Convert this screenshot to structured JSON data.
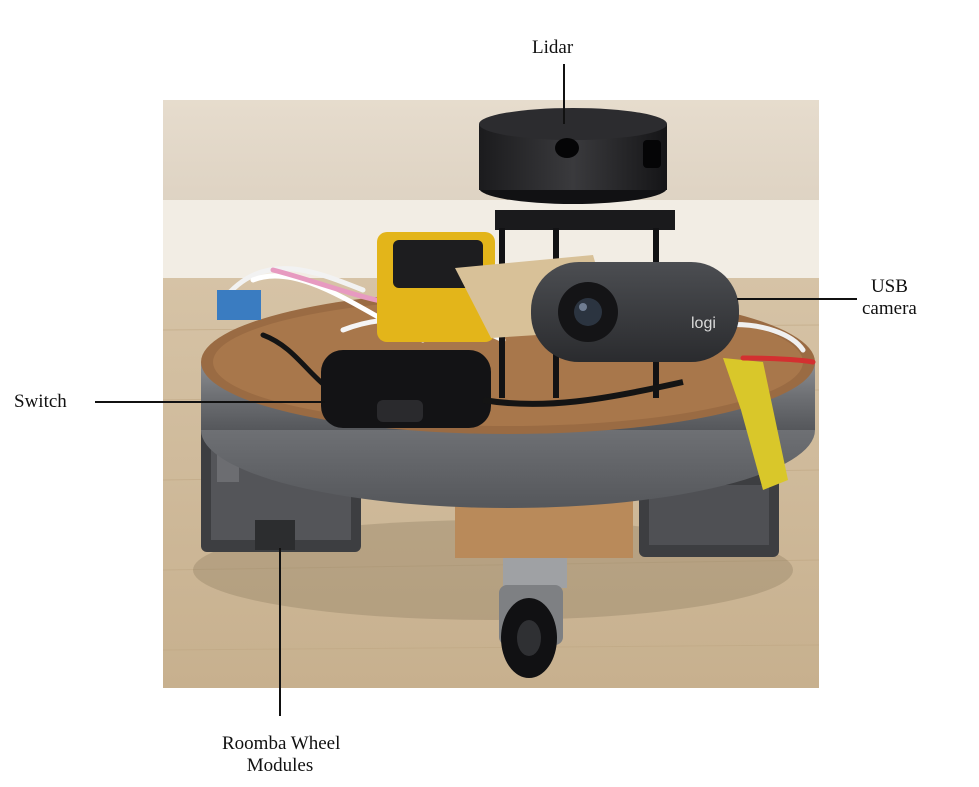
{
  "labels": {
    "lidar": "Lidar",
    "usb_line1": "USB",
    "usb_line2": "camera",
    "switch": "Switch",
    "roomba_line1": "Roomba Wheel",
    "roomba_line2": "Modules"
  },
  "camera_brand": "logi"
}
